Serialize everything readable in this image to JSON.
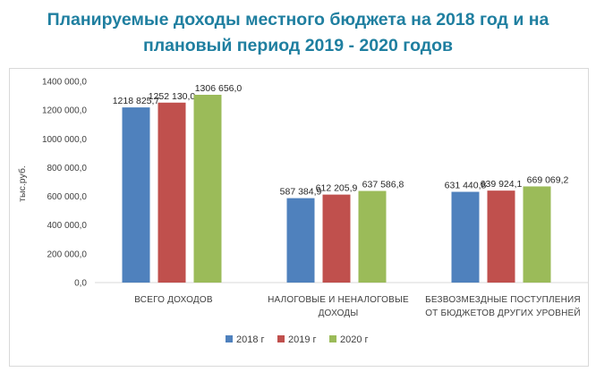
{
  "chart_data": {
    "type": "bar",
    "title_lines": [
      "Планируемые доходы местного бюджета на 2018 год и на",
      "плановый период 2019 - 2020 годов"
    ],
    "ylabel": "тыс.руб.",
    "ylim": [
      0,
      1400000
    ],
    "y_ticks": [
      {
        "value": 0,
        "label": "0,0"
      },
      {
        "value": 200000,
        "label": "200 000,0"
      },
      {
        "value": 400000,
        "label": "400 000,0"
      },
      {
        "value": 600000,
        "label": "600 000,0"
      },
      {
        "value": 800000,
        "label": "800 000,0"
      },
      {
        "value": 1000000,
        "label": "1000 000,0"
      },
      {
        "value": 1200000,
        "label": "1200 000,0"
      },
      {
        "value": 1400000,
        "label": "1400 000,0"
      }
    ],
    "categories": [
      [
        "ВСЕГО ДОХОДОВ"
      ],
      [
        "НАЛОГОВЫЕ И НЕНАЛОГОВЫЕ",
        "ДОХОДЫ"
      ],
      [
        "БЕЗВОЗМЕЗДНЫЕ ПОСТУПЛЕНИЯ",
        "ОТ БЮДЖЕТОВ ДРУГИХ УРОВНЕЙ"
      ]
    ],
    "series": [
      {
        "name": "2018 г",
        "color": "#4f81bd",
        "values": [
          1218825.7,
          587384.9,
          631440.8
        ],
        "labels": [
          "1218 825,7",
          "587 384,9",
          "631 440,8"
        ]
      },
      {
        "name": "2019 г",
        "color": "#c0504d",
        "values": [
          1252130.0,
          612205.9,
          639924.1
        ],
        "labels": [
          "1252 130,0",
          "612 205,9",
          "639 924,1"
        ]
      },
      {
        "name": "2020 г",
        "color": "#9bbb59",
        "values": [
          1306656.0,
          637586.8,
          669069.2
        ],
        "labels": [
          "1306 656,0",
          "637 586,8",
          "669 069,2"
        ]
      }
    ],
    "legend_position": "bottom",
    "grid": false
  }
}
